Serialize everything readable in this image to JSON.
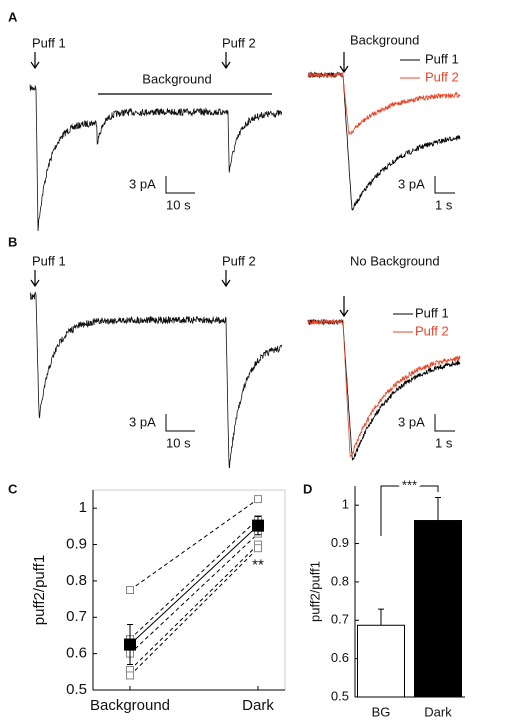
{
  "panel_a": {
    "label": "A",
    "puff1": "Puff 1",
    "puff2": "Puff 2",
    "background": "Background",
    "scale_y": "3 pA",
    "scale_x": "10 s",
    "inset_title": "Background",
    "legend": [
      "Puff 1",
      "Puff 2"
    ],
    "legend_colors": [
      "#000000",
      "#e8472a"
    ],
    "inset_scale_y": "3 pA",
    "inset_scale_x": "1 s"
  },
  "panel_b": {
    "label": "B",
    "puff1": "Puff 1",
    "puff2": "Puff 2",
    "scale_y": "3 pA",
    "scale_x": "10 s",
    "inset_title": "No Background",
    "legend": [
      "Puff 1",
      "Puff 2"
    ],
    "legend_colors": [
      "#000000",
      "#e8472a"
    ],
    "inset_scale_y": "3 pA",
    "inset_scale_x": "1 s"
  },
  "chart_data": [
    {
      "type": "paired",
      "label": "C",
      "ylabel": "puff2/puff1",
      "categories": [
        "Background",
        "Dark"
      ],
      "ylim": [
        0.5,
        1.05
      ],
      "yticks": [
        0.5,
        0.6,
        0.7,
        0.8,
        0.9,
        1
      ],
      "series": [
        {
          "color": "#000000",
          "dashed": true,
          "values": [
            0.775,
            1.025
          ]
        },
        {
          "color": "#000000",
          "dashed": true,
          "values": [
            0.64,
            0.97
          ]
        },
        {
          "color": "#000000",
          "dashed": true,
          "values": [
            0.6,
            0.93
          ]
        },
        {
          "color": "#000000",
          "dashed": true,
          "values": [
            0.555,
            0.9
          ]
        },
        {
          "color": "#000000",
          "dashed": true,
          "values": [
            0.54,
            0.89
          ]
        },
        {
          "color": "#000000",
          "dashed": false,
          "values": [
            0.625,
            0.952
          ],
          "errors": [
            0.055,
            0.025
          ]
        }
      ],
      "annotation": "**"
    },
    {
      "type": "bar",
      "label": "D",
      "ylabel": "puff2/puff1",
      "categories": [
        "BG",
        "Dark"
      ],
      "values": [
        0.687,
        0.96
      ],
      "errors": [
        0.042,
        0.06
      ],
      "colors": [
        "#ffffff",
        "#000000"
      ],
      "ylim": [
        0.5,
        1.05
      ],
      "yticks": [
        0.5,
        0.6,
        0.7,
        0.8,
        0.9,
        1
      ],
      "annotation": "***"
    }
  ]
}
